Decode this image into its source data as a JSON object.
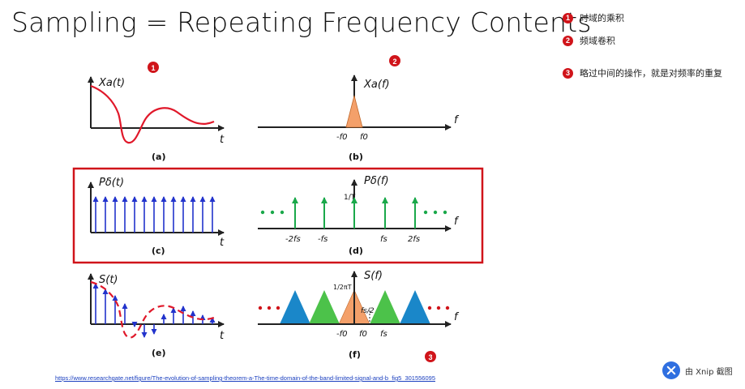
{
  "title": "Sampling = Repeating Frequency Contents",
  "notes": [
    {
      "num": "1",
      "text": "时域的乘积"
    },
    {
      "num": "2",
      "text": "频域卷积"
    },
    {
      "num": "3",
      "text": "略过中间的操作，就是对频率的重复"
    }
  ],
  "badges": {
    "a": "1",
    "b": "2",
    "f": "3"
  },
  "panels": {
    "a": {
      "caption": "(a)",
      "label": "Xa(t)",
      "axis": "t"
    },
    "b": {
      "caption": "(b)",
      "label": "Xa(f)",
      "axis": "f",
      "ticks": [
        "-f0",
        "f0"
      ]
    },
    "c": {
      "caption": "(c)",
      "label": "Pδ(t)",
      "axis": "t"
    },
    "d": {
      "caption": "(d)",
      "label": "Pδ(f)",
      "axis": "f",
      "amp": "1/T",
      "ticks": [
        "-2fs",
        "-fs",
        "fs",
        "2fs"
      ]
    },
    "e": {
      "caption": "(e)",
      "label": "S(t)",
      "axis": "t"
    },
    "f": {
      "caption": "(f)",
      "label": "S(f)",
      "axis": "f",
      "amp": "1/2πT",
      "half": "fs/2",
      "ticks": [
        "-f0",
        "f0",
        "fs"
      ]
    }
  },
  "link": "https://www.researchgate.net/figure/The-evolution-of-sampling-theorem-a-The-time-domain-of-the-band-limited-signal-and-b_fig5_301556095",
  "watermark": "由 Xnip 截图",
  "colors": {
    "badge": "#d0141a",
    "orange": "#f4a06a",
    "green": "#4cc24a",
    "blue": "#1a87c9",
    "impulse_blue": "#2233cc",
    "impulse_green": "#1aa84a",
    "dash_red": "#e0182a",
    "highlight_box": "#d0141a"
  }
}
